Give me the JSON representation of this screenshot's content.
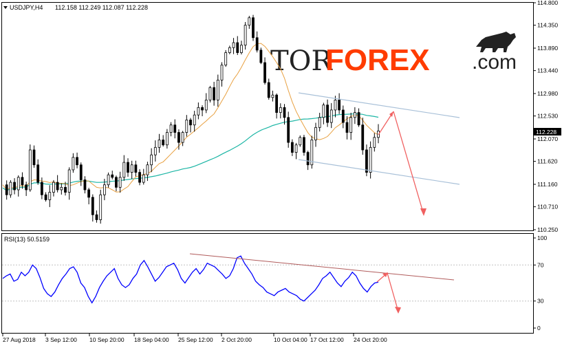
{
  "header": {
    "symbol": "USDJPY,H4",
    "ohlc": "112.158 112.249 112.087 112.228"
  },
  "logo": {
    "part1": "TOR",
    "part2": "FOREX",
    "part3": ".com"
  },
  "rsi_header": "RSI(13) 50.5159",
  "current_price_label": "112.228",
  "colors": {
    "candle": "#000000",
    "ma_fast": "#e8a040",
    "ma_slow": "#1ab5a4",
    "channel": "#a8c0d8",
    "arrow": "#f06060",
    "rsi_line": "#0000ff",
    "rsi_trend": "#b05a5a",
    "price_tag_bg": "#000000"
  },
  "chart_data": [
    {
      "type": "candlestick",
      "panel": "price",
      "ylim": [
        110.25,
        114.8
      ],
      "y_ticks": [
        "114.800",
        "114.350",
        "113.890",
        "113.440",
        "112.980",
        "112.530",
        "112.070",
        "111.620",
        "111.160",
        "110.710",
        "110.250"
      ],
      "x_ticks": [
        "27 Aug 2018",
        "3 Sep 12:00",
        "10 Sep 20:00",
        "18 Sep 04:00",
        "25 Sep 12:00",
        "2 Oct 20:00",
        "10 Oct 04:00",
        "17 Oct 12:00",
        "24 Oct 20:00"
      ],
      "close_path": [
        111.15,
        110.95,
        111.2,
        111.05,
        111.3,
        111.15,
        111.05,
        111.85,
        111.55,
        111.2,
        110.95,
        110.85,
        111.0,
        111.2,
        111.05,
        111.1,
        111.0,
        111.45,
        111.7,
        111.55,
        111.25,
        111.05,
        110.9,
        110.55,
        110.45,
        110.95,
        111.15,
        111.35,
        111.3,
        111.1,
        111.3,
        111.6,
        111.4,
        111.55,
        111.4,
        111.2,
        111.35,
        111.55,
        111.75,
        111.9,
        112.05,
        111.95,
        112.2,
        112.35,
        112.2,
        112.0,
        112.2,
        112.45,
        112.35,
        112.55,
        112.7,
        112.65,
        112.85,
        113.1,
        112.85,
        113.25,
        113.55,
        113.8,
        113.9,
        114.0,
        113.8,
        113.95,
        114.35,
        114.5,
        114.1,
        113.85,
        113.6,
        113.2,
        112.9,
        112.95,
        112.6,
        112.7,
        112.5,
        112.0,
        111.8,
        111.95,
        112.1,
        111.8,
        111.55,
        112.05,
        112.3,
        112.5,
        112.75,
        112.4,
        112.65,
        112.85,
        112.65,
        112.4,
        112.2,
        112.5,
        112.6,
        112.35,
        111.85,
        111.4,
        111.9,
        112.1,
        112.23
      ],
      "last_price": 112.228,
      "trendlines": [
        {
          "from": [
            "10 Oct 04:00",
            112.98
          ],
          "to": [
            "24 Oct 20:00",
            112.53
          ]
        },
        {
          "from": [
            "10 Oct 04:00",
            111.7
          ],
          "to": [
            "24 Oct 20:00",
            111.16
          ]
        }
      ]
    },
    {
      "type": "line",
      "panel": "rsi",
      "ylim": [
        0,
        100
      ],
      "y_ticks": [
        "100",
        "70",
        "30",
        "0"
      ],
      "levels": [
        70,
        30
      ],
      "series": [
        {
          "values": [
            55,
            58,
            60,
            52,
            54,
            62,
            58,
            62,
            70,
            66,
            56,
            44,
            38,
            35,
            40,
            48,
            55,
            60,
            66,
            68,
            62,
            50,
            45,
            35,
            28,
            35,
            45,
            52,
            58,
            62,
            66,
            55,
            48,
            45,
            48,
            55,
            60,
            70,
            75,
            68,
            60,
            52,
            56,
            62,
            68,
            70,
            72,
            65,
            55,
            50,
            56,
            62,
            66,
            60,
            65,
            72,
            70,
            68,
            64,
            60,
            55,
            58,
            66,
            78,
            80,
            72,
            66,
            60,
            52,
            48,
            45,
            40,
            38,
            36,
            40,
            42,
            44,
            40,
            38,
            36,
            32,
            30,
            34,
            38,
            42,
            48,
            55,
            58,
            62,
            56,
            50,
            46,
            52,
            56,
            62,
            58,
            50,
            44,
            40,
            46,
            50,
            51
          ]
        }
      ]
    }
  ]
}
